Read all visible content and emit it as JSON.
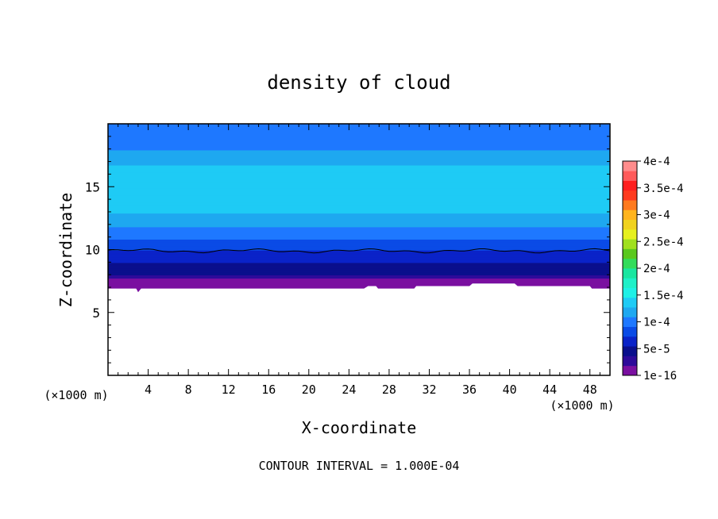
{
  "chart_data": {
    "type": "heatmap",
    "title": "density of cloud",
    "xlabel": "X-coordinate",
    "ylabel": "Z-coordinate",
    "x_unit": "(×1000 m)",
    "y_unit": "(×1000 m)",
    "xlim": [
      0,
      50
    ],
    "ylim": [
      0,
      20
    ],
    "x_ticks": [
      4,
      8,
      12,
      16,
      20,
      24,
      28,
      32,
      36,
      40,
      44,
      48
    ],
    "y_ticks": [
      5,
      10,
      15
    ],
    "footer": "CONTOUR INTERVAL = 1.000E-04",
    "colorbar": {
      "labels": [
        {
          "text": "1e-16",
          "value": 0.0
        },
        {
          "text": "5e-5",
          "value": 5e-05
        },
        {
          "text": "1e-4",
          "value": 0.0001
        },
        {
          "text": "1.5e-4",
          "value": 0.00015
        },
        {
          "text": "2e-4",
          "value": 0.0002
        },
        {
          "text": "2.5e-4",
          "value": 0.00025
        },
        {
          "text": "3e-4",
          "value": 0.0003
        },
        {
          "text": "3.5e-4",
          "value": 0.00035
        },
        {
          "text": "4e-4",
          "value": 0.0004
        }
      ],
      "colors": [
        "#7a0fa0",
        "#2e0a9a",
        "#0a0f8c",
        "#0a23c8",
        "#0a4be6",
        "#1e78ff",
        "#1ea8f0",
        "#1ecbf5",
        "#1ef0e6",
        "#1ef0c8",
        "#19e6a0",
        "#32dc5a",
        "#5ac81e",
        "#a0e01e",
        "#e6f01e",
        "#f0d21e",
        "#ffb41e",
        "#ff7a1e",
        "#ff3a1e",
        "#ff1e1e",
        "#ff5a5a",
        "#ff8c8c"
      ]
    },
    "field_profile": [
      {
        "z": 6.9,
        "density": 1e-05
      },
      {
        "z": 7.5,
        "density": 3e-05
      },
      {
        "z": 8.3,
        "density": 4e-05
      },
      {
        "z": 9.0,
        "density": 5.5e-05
      },
      {
        "z": 9.8,
        "density": 7e-05
      },
      {
        "z": 10.5,
        "density": 8.5e-05
      },
      {
        "z": 11.3,
        "density": 0.0001
      },
      {
        "z": 12.2,
        "density": 0.000115
      },
      {
        "z": 13.0,
        "density": 0.00013
      },
      {
        "z": 14.5,
        "density": 0.00014
      },
      {
        "z": 16.5,
        "density": 0.00013
      },
      {
        "z": 17.6,
        "density": 0.000115
      },
      {
        "z": 18.4,
        "density": 0.0001
      },
      {
        "z": 20.0,
        "density": 9.5e-05
      }
    ],
    "contour_line": {
      "value": 0.0001,
      "z": 9.9
    },
    "cloud_base": [
      {
        "x": 0,
        "z": 6.9
      },
      {
        "x": 2.8,
        "z": 6.9
      },
      {
        "x": 3.0,
        "z": 6.6
      },
      {
        "x": 3.3,
        "z": 6.9
      },
      {
        "x": 25.5,
        "z": 6.9
      },
      {
        "x": 25.9,
        "z": 7.1
      },
      {
        "x": 26.7,
        "z": 7.1
      },
      {
        "x": 26.9,
        "z": 6.9
      },
      {
        "x": 30.5,
        "z": 6.9
      },
      {
        "x": 30.7,
        "z": 7.1
      },
      {
        "x": 36.0,
        "z": 7.1
      },
      {
        "x": 36.3,
        "z": 7.3
      },
      {
        "x": 40.5,
        "z": 7.3
      },
      {
        "x": 40.8,
        "z": 7.1
      },
      {
        "x": 48.0,
        "z": 7.1
      },
      {
        "x": 48.2,
        "z": 6.9
      },
      {
        "x": 50,
        "z": 6.9
      }
    ]
  }
}
